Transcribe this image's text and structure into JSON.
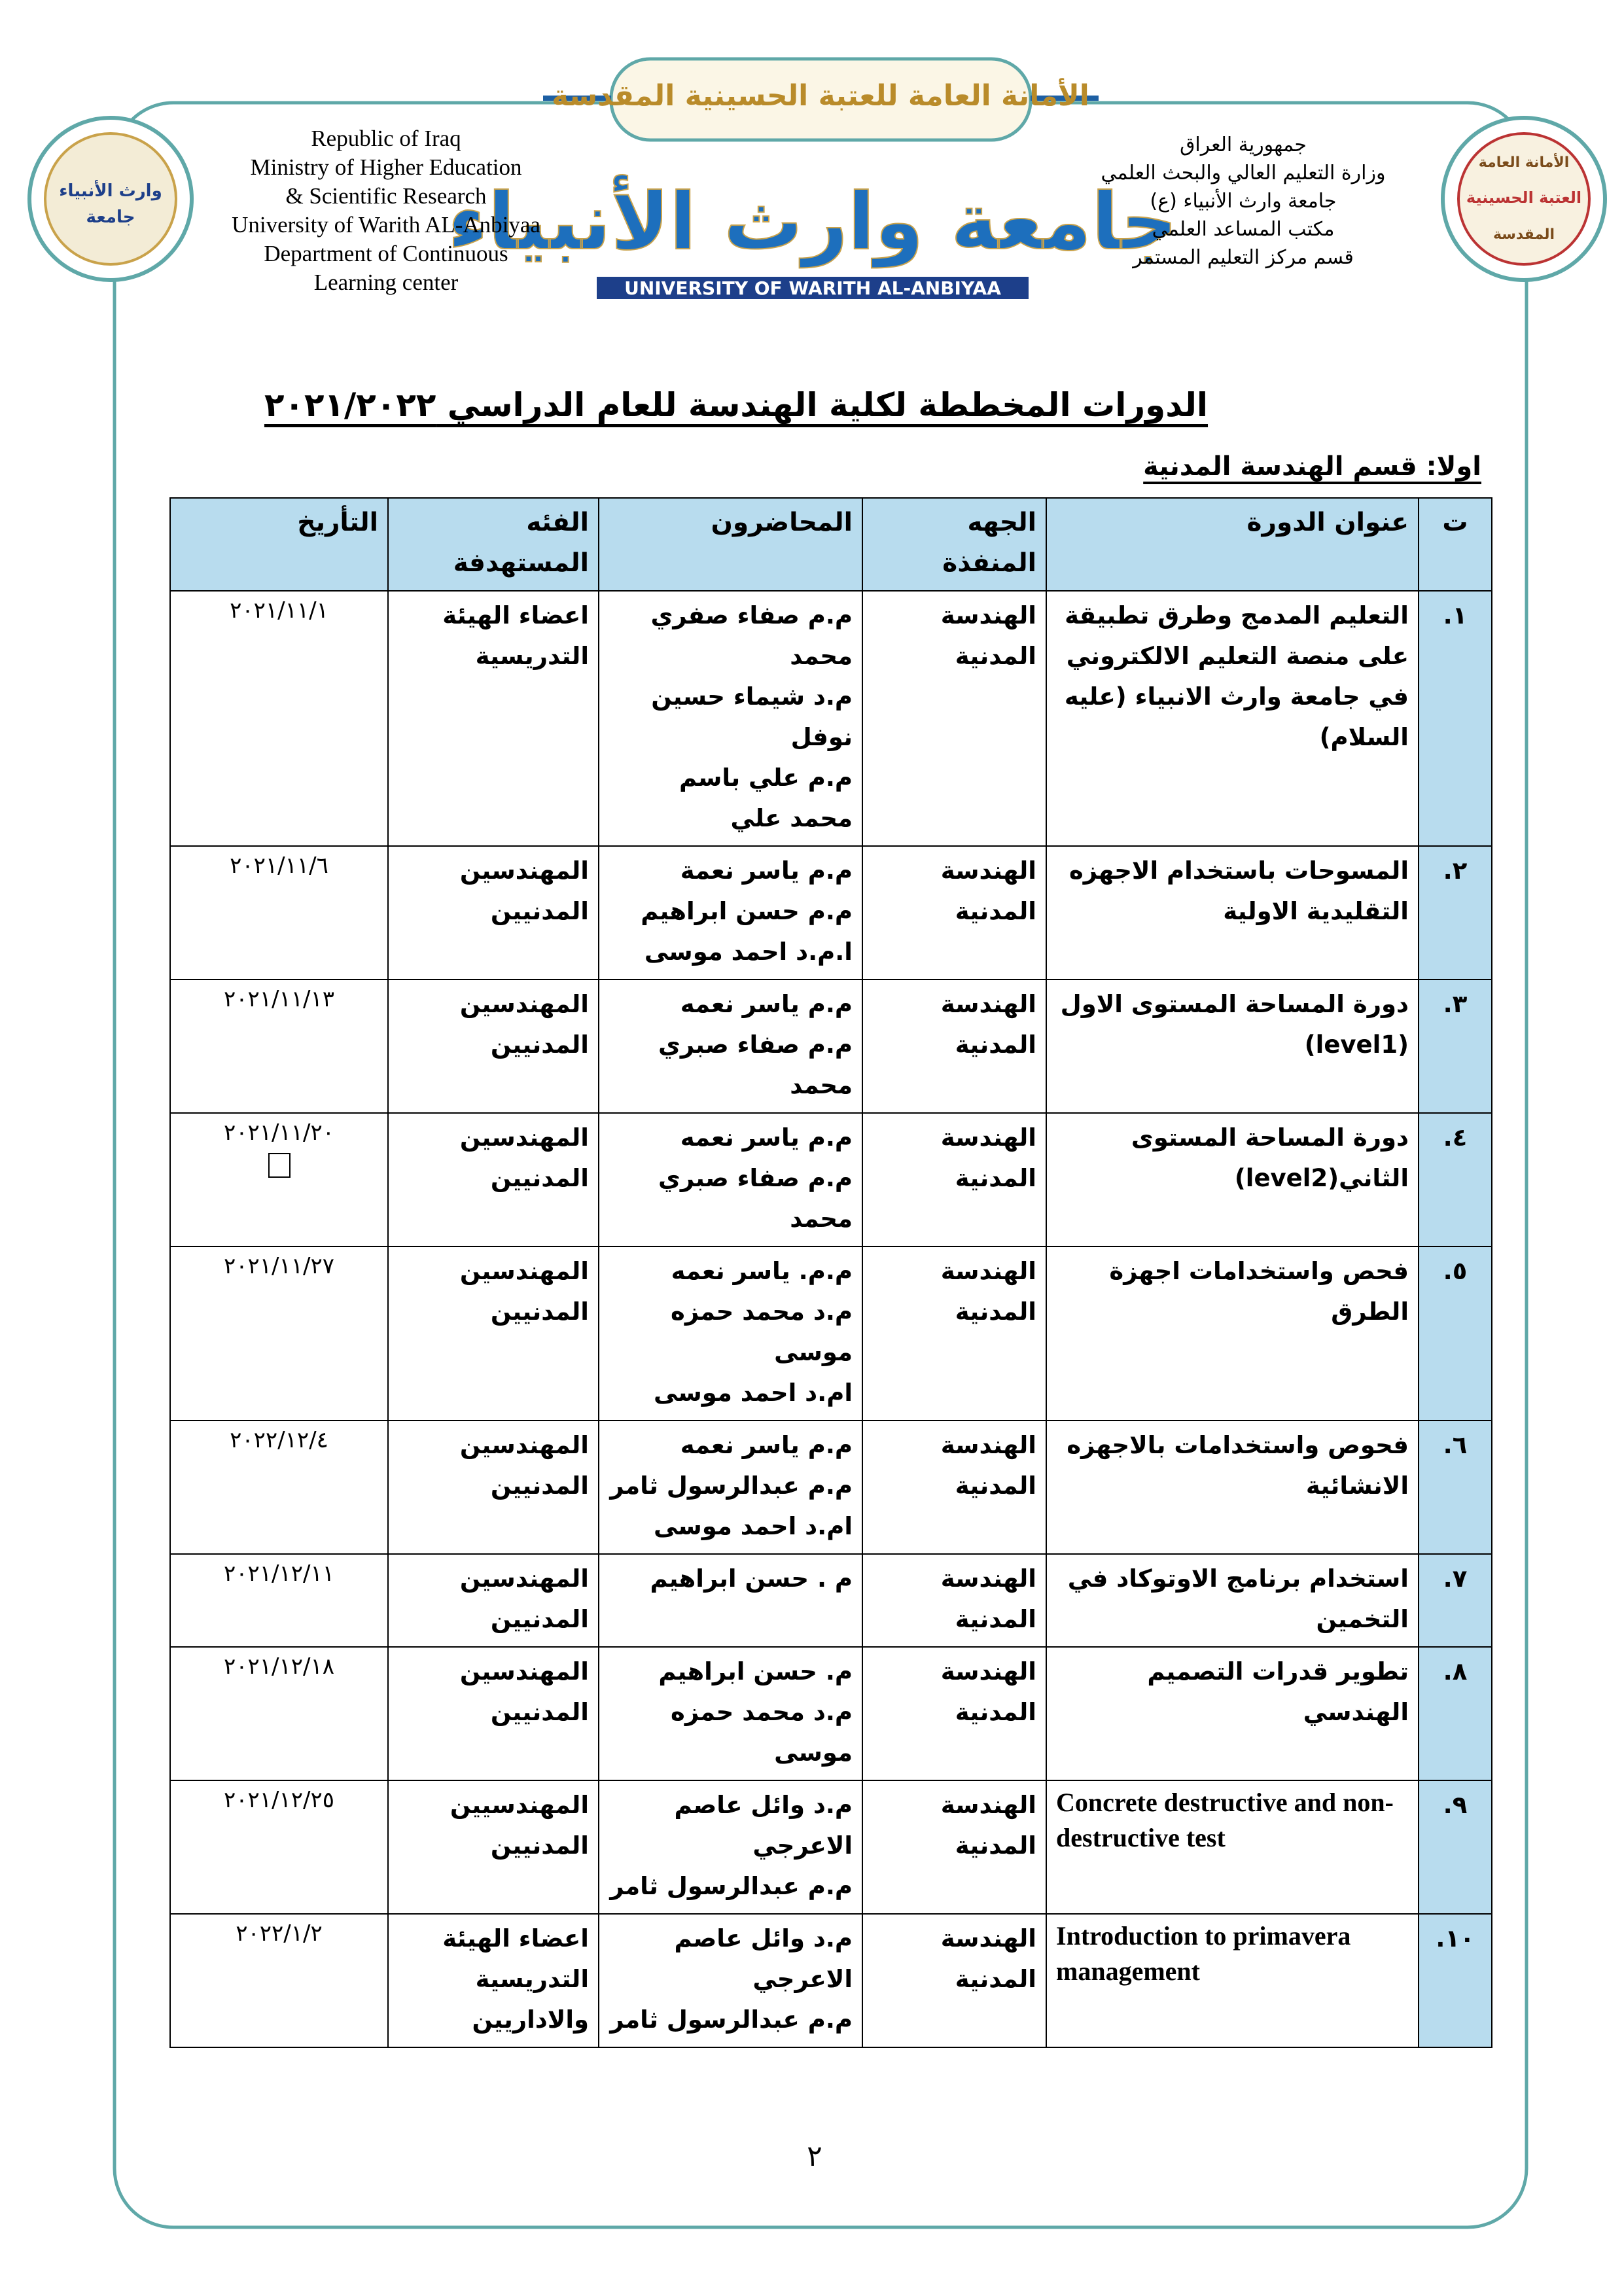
{
  "header": {
    "banner_text": "الأمانة العامة للعتبة الحسينية المقدسة",
    "university_logo_text": "جامعة وارث الأنبياء",
    "university_logo_caption": "UNIVERSITY OF WARITH AL-ANBIYAA",
    "left_logo": [
      "وارث الأنبياء",
      "جامعة"
    ],
    "right_logo": [
      "الأمانة العامة",
      "العتبة الحسينية",
      "المقدسة"
    ],
    "english_lines": [
      "Republic of Iraq",
      "Ministry of  Higher Education",
      "& Scientific Research",
      "University of  Warith AL-Anbiyaa",
      "Department of Continuous",
      "Learning center"
    ],
    "arabic_lines": [
      "جمهورية العراق",
      "وزارة التعليم العالي والبحث العلمي",
      "جامعة وارث الأنبياء (ع)",
      "مكتب المساعد العلمي",
      "قسم مركز التعليم المستمر"
    ]
  },
  "title": "الدورات المخططة لكلية الهندسة للعام الدراسي ٢٠٢١/٢٠٢٢",
  "subtitle": "اولا: قسم الهندسة المدنية",
  "table": {
    "columns": [
      "ت",
      "عنوان الدورة",
      "الجهه المنفذة",
      "المحاضرون",
      "الفئه المستهدفة",
      "التأريخ"
    ],
    "rows": [
      {
        "number": "١.",
        "title": "التعليم المدمج وطرق تطبيقة على منصة التعليم الالكتروني في جامعة وارث الانبياء (عليه السلام)",
        "department": "الهندسة المدنية",
        "lecturers": [
          "م.م صفاء صفري محمد",
          "م.د شيماء حسين نوفل",
          "م.م علي باسم محمد علي"
        ],
        "audience": "اعضاء الهيئة التدريسية",
        "date": "٢٠٢١/١١/١"
      },
      {
        "number": "٢.",
        "title": "المسوحات باستخدام الاجهزه التقليدية الاولية",
        "department": "الهندسة المدنية",
        "lecturers": [
          "م.م ياسر نعمة",
          "م.م حسن ابراهيم",
          "ا.م.د احمد موسى"
        ],
        "audience": "المهندسين المدنيين",
        "date": "٢٠٢١/١١/٦"
      },
      {
        "number": "٣.",
        "title": "دورة المساحة المستوى الاول (level1)",
        "department": "الهندسة المدنية",
        "lecturers": [
          "م.م ياسر نعمه",
          "م.م صفاء صبري محمد"
        ],
        "audience": "المهندسين المدنيين",
        "date": "٢٠٢١/١١/١٣"
      },
      {
        "number": "٤.",
        "title": "دورة المساحة المستوى الثاني(level2)",
        "department": "الهندسة المدنية",
        "lecturers": [
          "م.م ياسر نعمه",
          "م.م صفاء صبري محمد"
        ],
        "audience": "المهندسين المدنيين",
        "date": "٢٠٢١/١١/٢٠"
      },
      {
        "number": "٥.",
        "title": "فحص واستخدامات اجهزة الطرق",
        "department": "الهندسة المدنية",
        "lecturers": [
          "م.م. ياسر نعمه",
          "م.د محمد حمزه موسى",
          "ام.د احمد موسى"
        ],
        "audience": "المهندسين المدنيين",
        "date": "٢٠٢١/١١/٢٧"
      },
      {
        "number": "٦.",
        "title": "فحوص واستخدامات بالاجهزه الانشائية",
        "department": "الهندسة المدنية",
        "lecturers": [
          "م.م ياسر نعمه",
          "م.م عبدالرسول ثامر",
          "ام.د احمد موسى"
        ],
        "audience": "المهندسين المدنيين",
        "date": "٢٠٢٢/١٢/٤"
      },
      {
        "number": "٧.",
        "title": "استخدام برنامج الاوتوكاد في التخمين",
        "department": "الهندسة المدنية",
        "lecturers": [
          "م . حسن ابراهيم"
        ],
        "audience": "المهندسين المدنيين",
        "date": "٢٠٢١/١٢/١١"
      },
      {
        "number": "٨.",
        "title": "تطوير قدرات التصميم الهندسي",
        "department": "الهندسة المدنية",
        "lecturers": [
          "م. حسن ابراهيم",
          "م.د محمد حمزه موسى"
        ],
        "audience": "المهندسين المدنيين",
        "date": "٢٠٢١/١٢/١٨"
      },
      {
        "number": "٩.",
        "title": "Concrete destructive and non-destructive test",
        "department": "الهندسة المدنية",
        "lecturers": [
          "م.د وائل عاصم الاعرجي",
          "م.م عبدالرسول ثامر"
        ],
        "audience": "المهندسيين المدنيين",
        "date": "٢٠٢١/١٢/٢٥"
      },
      {
        "number": "١٠.",
        "title": "Introduction to primavera management",
        "department": "الهندسة المدنية",
        "lecturers": [
          "م.د وائل عاصم الاعرجي",
          "م.م عبدالرسول ثامر"
        ],
        "audience": "اعضاء الهيئة التدريسية والاداريين",
        "date": "٢٠٢٢/١/٢"
      }
    ]
  },
  "page_number": "٢"
}
